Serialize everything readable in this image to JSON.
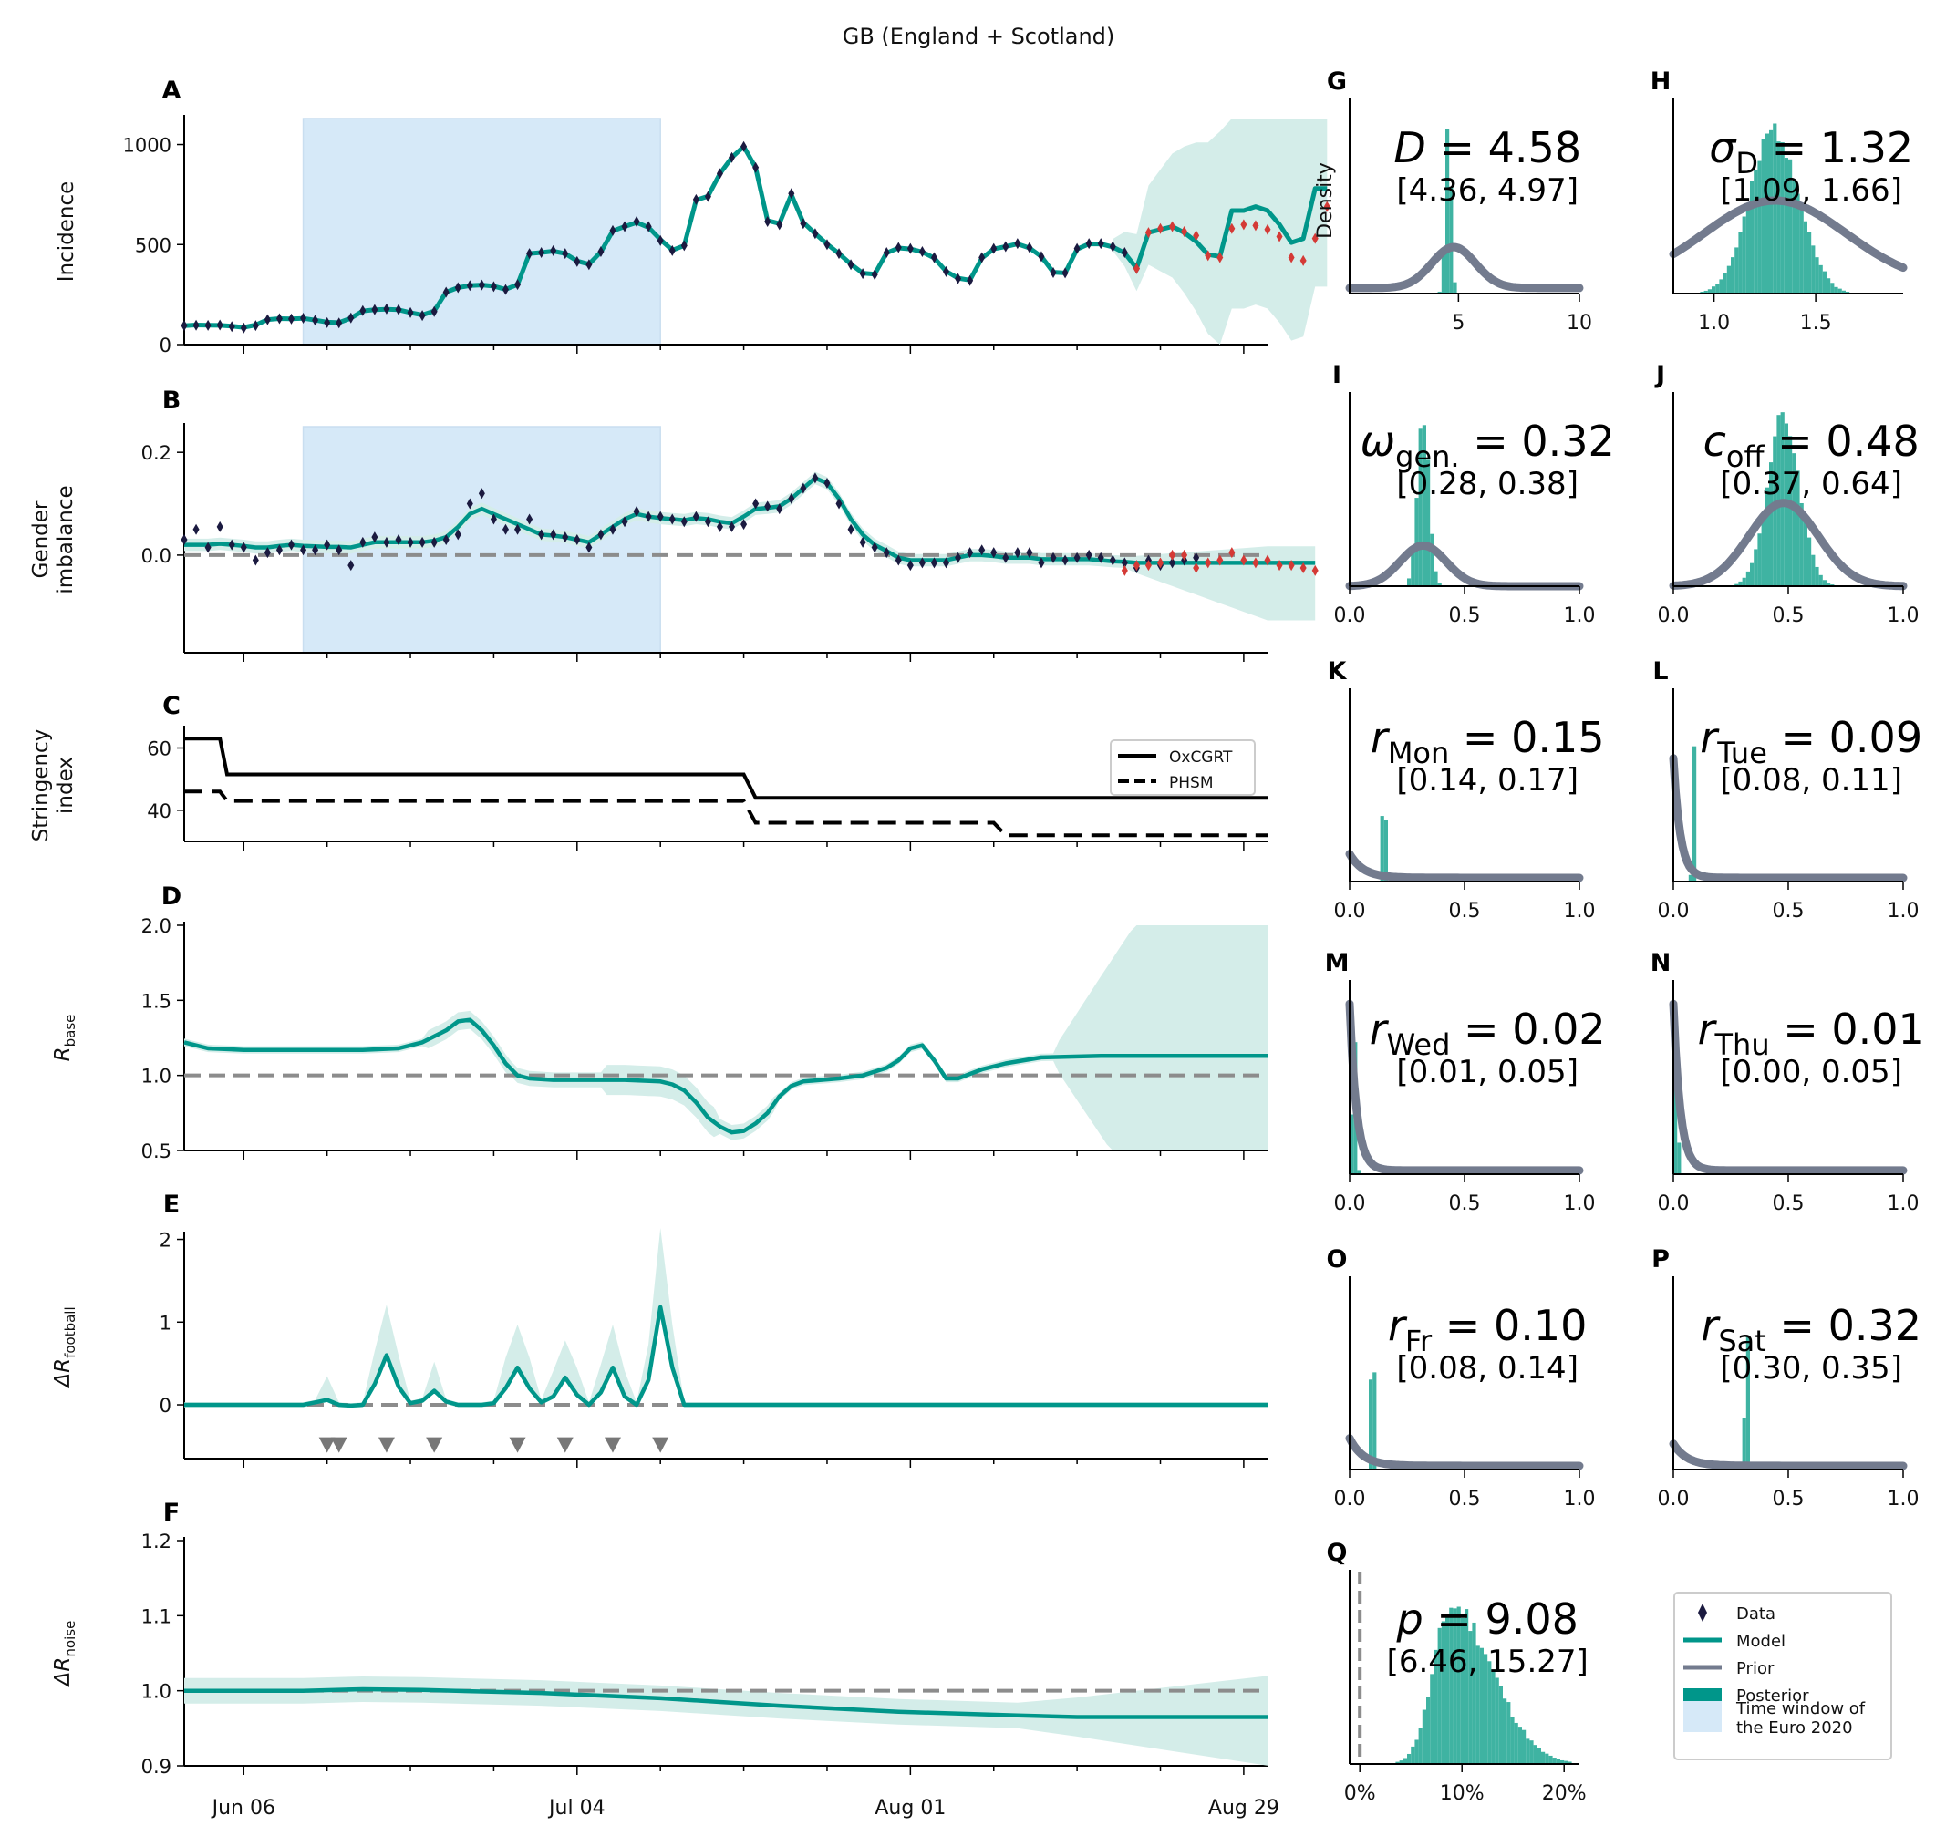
{
  "suptitle": "GB (England + Scotland)",
  "colors": {
    "model": "#00968a",
    "prior": "#737b8e",
    "posterior": "#3fb3a2",
    "band": "#d4ede9",
    "euro": "#d6e9f8",
    "data": "#1b1a40",
    "forecast": "#d43a36",
    "ref": "#8c8c8c"
  },
  "x_axis": {
    "ticks": [
      "Jun 06",
      "Jul 04",
      "Aug 01",
      "Aug 29"
    ],
    "tick_day": [
      5,
      33,
      61,
      89
    ],
    "range": [
      0,
      91
    ]
  },
  "euro_window": [
    10,
    40
  ],
  "panels": [
    {
      "letter": "A",
      "ylabel": "Incidence",
      "yticks": [
        "0",
        "500",
        "1000"
      ],
      "ytick_vals": [
        0,
        500,
        1000
      ],
      "ylim": [
        0,
        1130
      ]
    },
    {
      "letter": "B",
      "ylabel_1": "Gender",
      "ylabel_2": "imbalance",
      "yticks": [
        "0.0",
        "0.2"
      ],
      "ytick_vals": [
        0,
        0.2
      ],
      "ylim": [
        -0.19,
        0.25
      ]
    },
    {
      "letter": "C",
      "ylabel_1": "Stringency",
      "ylabel_2": "index",
      "yticks": [
        "40",
        "60"
      ],
      "ytick_vals": [
        40,
        60
      ],
      "ylim": [
        30,
        66
      ]
    },
    {
      "letter": "D",
      "ylabel": "R",
      "ylabel_sub": "base",
      "yticks": [
        "0.5",
        "1.0",
        "1.5",
        "2.0"
      ],
      "ytick_vals": [
        0.5,
        1,
        1.5,
        2
      ],
      "ylim": [
        0.5,
        2
      ]
    },
    {
      "letter": "E",
      "ylabel": "ΔR",
      "ylabel_sub": "football",
      "yticks": [
        "0",
        "1",
        "2"
      ],
      "ytick_vals": [
        0,
        1,
        2
      ],
      "ylim": [
        -0.65,
        2.05
      ]
    },
    {
      "letter": "F",
      "ylabel": "ΔR",
      "ylabel_sub": "noise",
      "yticks": [
        "0.9",
        "1.0",
        "1.1",
        "1.2"
      ],
      "ytick_vals": [
        0.9,
        1,
        1.1,
        1.2
      ],
      "ylim": [
        0.9,
        1.2
      ]
    }
  ],
  "stringency_legend": [
    "OxCGRT",
    "PHSM"
  ],
  "match_days": [
    12,
    13,
    17,
    21,
    28,
    32,
    36,
    40
  ],
  "chart_data": {
    "type": "line",
    "title": "GB (England + Scotland)",
    "incidence_data": [
      95,
      97,
      96,
      98,
      90,
      83,
      95,
      125,
      130,
      128,
      132,
      122,
      110,
      108,
      133,
      170,
      175,
      178,
      175,
      160,
      145,
      165,
      262,
      285,
      295,
      298,
      290,
      275,
      300,
      455,
      460,
      470,
      455,
      415,
      400,
      465,
      570,
      590,
      615,
      590,
      520,
      470,
      495,
      725,
      740,
      855,
      935,
      990,
      885,
      615,
      600,
      755,
      605,
      555,
      500,
      455,
      400,
      355,
      350,
      460,
      485,
      480,
      465,
      435,
      365,
      330,
      320,
      435,
      480,
      490,
      505,
      485,
      440,
      360,
      358,
      480,
      505,
      505,
      490,
      460,
      380
    ],
    "incidence_forecast": [
      380,
      560,
      580,
      590,
      565,
      545,
      445,
      435,
      580,
      600,
      595,
      575,
      540,
      435,
      420,
      530,
      690
    ],
    "incidence_model": [
      95,
      98,
      97,
      96,
      92,
      86,
      98,
      125,
      130,
      129,
      131,
      122,
      112,
      110,
      132,
      168,
      174,
      177,
      174,
      160,
      148,
      168,
      262,
      285,
      295,
      298,
      292,
      276,
      300,
      455,
      460,
      467,
      455,
      418,
      402,
      463,
      568,
      590,
      610,
      586,
      525,
      472,
      495,
      722,
      742,
      855,
      935,
      990,
      885,
      620,
      605,
      750,
      610,
      555,
      502,
      455,
      402,
      357,
      352,
      458,
      483,
      478,
      463,
      433,
      367,
      332,
      322,
      432,
      478,
      490,
      503,
      483,
      440,
      362,
      358,
      477,
      503,
      503,
      488,
      458,
      382,
      560,
      575,
      590,
      560,
      515,
      450,
      440,
      670,
      670,
      690,
      670,
      600,
      510,
      530,
      780,
      780
    ],
    "gender_data": [
      0.03,
      0.05,
      0.015,
      0.055,
      0.02,
      0.015,
      -0.01,
      0.005,
      0.01,
      0.02,
      0.01,
      0.01,
      0.02,
      0.01,
      -0.02,
      0.025,
      0.035,
      0.025,
      0.03,
      0.025,
      0.025,
      0.025,
      0.03,
      0.04,
      0.1,
      0.12,
      0.07,
      0.05,
      0.05,
      0.07,
      0.04,
      0.04,
      0.035,
      0.03,
      0.015,
      0.04,
      0.05,
      0.065,
      0.085,
      0.075,
      0.075,
      0.07,
      0.065,
      0.075,
      0.065,
      0.055,
      0.055,
      0.06,
      0.1,
      0.095,
      0.09,
      0.11,
      0.13,
      0.15,
      0.14,
      0.1,
      0.05,
      0.025,
      0.015,
      0.005,
      -0.01,
      -0.02,
      -0.015,
      -0.015,
      -0.015,
      -0.005,
      0.005,
      0.01,
      0.005,
      -0.005,
      0.005,
      0.005,
      -0.015,
      -0.005,
      -0.01,
      -0.005,
      0.0,
      -0.005,
      -0.01,
      -0.015,
      -0.025,
      -0.01,
      -0.02,
      -0.015,
      -0.01,
      -0.005
    ],
    "gender_forecast": [
      -0.03,
      -0.02,
      -0.02,
      -0.015,
      0.0,
      0.0,
      -0.025,
      -0.015,
      -0.01,
      0.005,
      -0.01,
      -0.015,
      -0.01,
      -0.02,
      -0.02,
      -0.025,
      -0.03
    ],
    "gender_model": [
      0.02,
      0.02,
      0.02,
      0.022,
      0.02,
      0.018,
      0.015,
      0.015,
      0.018,
      0.02,
      0.018,
      0.017,
      0.016,
      0.016,
      0.015,
      0.02,
      0.025,
      0.025,
      0.025,
      0.025,
      0.025,
      0.028,
      0.035,
      0.055,
      0.08,
      0.09,
      0.08,
      0.07,
      0.06,
      0.05,
      0.04,
      0.038,
      0.035,
      0.03,
      0.025,
      0.04,
      0.055,
      0.07,
      0.08,
      0.075,
      0.072,
      0.07,
      0.068,
      0.072,
      0.07,
      0.065,
      0.062,
      0.075,
      0.09,
      0.092,
      0.095,
      0.11,
      0.13,
      0.15,
      0.14,
      0.11,
      0.07,
      0.04,
      0.02,
      0.008,
      -0.005,
      -0.01,
      -0.01,
      -0.01,
      -0.01,
      -0.005,
      0.0,
      0.0,
      -0.002,
      -0.005,
      -0.005,
      -0.005,
      -0.008,
      -0.008,
      -0.008,
      -0.008,
      -0.008,
      -0.01,
      -0.012,
      -0.013,
      -0.015,
      -0.015,
      -0.015,
      -0.015,
      -0.015,
      -0.015,
      -0.015,
      -0.015,
      -0.015,
      -0.015,
      -0.015,
      -0.015,
      -0.015,
      -0.015,
      -0.015,
      -0.015
    ],
    "stringency_oxcgrt": [
      [
        0,
        63
      ],
      [
        3,
        63
      ],
      [
        3.6,
        51.5
      ],
      [
        47,
        51.5
      ],
      [
        48,
        44
      ],
      [
        91,
        44
      ]
    ],
    "stringency_phsm": [
      [
        0,
        46
      ],
      [
        3,
        46
      ],
      [
        3.6,
        43
      ],
      [
        47,
        43
      ],
      [
        48,
        36
      ],
      [
        68,
        36
      ],
      [
        69,
        32
      ],
      [
        91,
        32
      ]
    ],
    "r_base_mean": [
      [
        0,
        1.22
      ],
      [
        2,
        1.18
      ],
      [
        5,
        1.17
      ],
      [
        10,
        1.17
      ],
      [
        15,
        1.17
      ],
      [
        18,
        1.18
      ],
      [
        20,
        1.22
      ],
      [
        22,
        1.3
      ],
      [
        23,
        1.36
      ],
      [
        24,
        1.37
      ],
      [
        25,
        1.3
      ],
      [
        26,
        1.2
      ],
      [
        27,
        1.08
      ],
      [
        28,
        1.0
      ],
      [
        29,
        0.98
      ],
      [
        31,
        0.97
      ],
      [
        34,
        0.97
      ],
      [
        37,
        0.97
      ],
      [
        40,
        0.96
      ],
      [
        41,
        0.94
      ],
      [
        42,
        0.9
      ],
      [
        43,
        0.82
      ],
      [
        44,
        0.72
      ],
      [
        45,
        0.66
      ],
      [
        46,
        0.62
      ],
      [
        47,
        0.63
      ],
      [
        48,
        0.68
      ],
      [
        49,
        0.75
      ],
      [
        50,
        0.86
      ],
      [
        51,
        0.93
      ],
      [
        52,
        0.96
      ],
      [
        55,
        0.98
      ],
      [
        57,
        1.0
      ],
      [
        59,
        1.05
      ],
      [
        60,
        1.1
      ],
      [
        61,
        1.18
      ],
      [
        62,
        1.2
      ],
      [
        63,
        1.1
      ],
      [
        64,
        0.98
      ],
      [
        65,
        0.98
      ],
      [
        67,
        1.04
      ],
      [
        69,
        1.08
      ],
      [
        72,
        1.12
      ],
      [
        77,
        1.13
      ],
      [
        91,
        1.13
      ]
    ],
    "dr_football_mean": [
      [
        0,
        0
      ],
      [
        10,
        0
      ],
      [
        11,
        0.03
      ],
      [
        12,
        0.06
      ],
      [
        13,
        0.0
      ],
      [
        14,
        -0.01
      ],
      [
        15,
        0.0
      ],
      [
        16,
        0.25
      ],
      [
        17,
        0.6
      ],
      [
        18,
        0.22
      ],
      [
        19,
        0.02
      ],
      [
        20,
        0.05
      ],
      [
        21,
        0.17
      ],
      [
        22,
        0.04
      ],
      [
        23,
        0
      ],
      [
        25,
        0
      ],
      [
        26,
        0.02
      ],
      [
        27,
        0.2
      ],
      [
        28,
        0.45
      ],
      [
        29,
        0.2
      ],
      [
        30,
        0.03
      ],
      [
        31,
        0.1
      ],
      [
        32,
        0.33
      ],
      [
        33,
        0.12
      ],
      [
        34,
        0.0
      ],
      [
        35,
        0.15
      ],
      [
        36,
        0.45
      ],
      [
        37,
        0.1
      ],
      [
        38,
        0.0
      ],
      [
        39,
        0.3
      ],
      [
        40,
        1.18
      ],
      [
        41,
        0.45
      ],
      [
        42,
        0.0
      ],
      [
        43,
        0
      ],
      [
        91,
        0
      ]
    ],
    "dr_noise_mean": [
      [
        0,
        1.0
      ],
      [
        10,
        1.0
      ],
      [
        15,
        1.002
      ],
      [
        20,
        1.001
      ],
      [
        25,
        0.999
      ],
      [
        30,
        0.997
      ],
      [
        40,
        0.99
      ],
      [
        45,
        0.985
      ],
      [
        50,
        0.98
      ],
      [
        60,
        0.972
      ],
      [
        70,
        0.967
      ],
      [
        75,
        0.965
      ],
      [
        91,
        0.965
      ]
    ],
    "posteriors": [
      {
        "letter": "G",
        "label": "D = 4.58",
        "ci": "[4.36, 4.97]",
        "xticks": [
          "5",
          "10"
        ],
        "ylabel": "Density"
      },
      {
        "letter": "H",
        "label": "σD = 1.32",
        "ci": "[1.09, 1.66]",
        "xticks": [
          "1.0",
          "1.5"
        ]
      },
      {
        "letter": "I",
        "label": "ωgen. = 0.32",
        "ci": "[0.28, 0.38]",
        "xticks": [
          "0.0",
          "0.5",
          "1.0"
        ]
      },
      {
        "letter": "J",
        "label": "coff = 0.48",
        "ci": "[0.37, 0.64]",
        "xticks": [
          "0.0",
          "0.5",
          "1.0"
        ]
      },
      {
        "letter": "K",
        "label": "rMon = 0.15",
        "ci": "[0.14, 0.17]",
        "xticks": [
          "0.0",
          "0.5",
          "1.0"
        ]
      },
      {
        "letter": "L",
        "label": "rTue = 0.09",
        "ci": "[0.08, 0.11]",
        "xticks": [
          "0.0",
          "0.5",
          "1.0"
        ]
      },
      {
        "letter": "M",
        "label": "rWed = 0.02",
        "ci": "[0.01, 0.05]",
        "xticks": [
          "0.0",
          "0.5",
          "1.0"
        ]
      },
      {
        "letter": "N",
        "label": "rThu = 0.01",
        "ci": "[0.00, 0.05]",
        "xticks": [
          "0.0",
          "0.5",
          "1.0"
        ]
      },
      {
        "letter": "O",
        "label": "rFr = 0.10",
        "ci": "[0.08, 0.14]",
        "xticks": [
          "0.0",
          "0.5",
          "1.0"
        ]
      },
      {
        "letter": "P",
        "label": "rSat = 0.32",
        "ci": "[0.30, 0.35]",
        "xticks": [
          "0.0",
          "0.5",
          "1.0"
        ]
      },
      {
        "letter": "Q",
        "label": "p = 9.08",
        "ci": "[6.46, 15.27]",
        "xticks": [
          "0%",
          "10%",
          "20%"
        ]
      }
    ]
  },
  "posterior_symbols": [
    {
      "main": "D",
      "sub": "",
      "value": " = 4.58"
    },
    {
      "main": "σ",
      "sub": "D",
      "value": " = 1.32"
    },
    {
      "main": "ω",
      "sub": "gen.",
      "value": " = 0.32"
    },
    {
      "main": "c",
      "sub": "off",
      "value": " = 0.48"
    },
    {
      "main": "r",
      "sub": "Mon",
      "value": " = 0.15"
    },
    {
      "main": "r",
      "sub": "Tue",
      "value": " = 0.09"
    },
    {
      "main": "r",
      "sub": "Wed",
      "value": " = 0.02"
    },
    {
      "main": "r",
      "sub": "Thu",
      "value": " = 0.01"
    },
    {
      "main": "r",
      "sub": "Fr",
      "value": " = 0.10"
    },
    {
      "main": "r",
      "sub": "Sat",
      "value": " = 0.32"
    },
    {
      "main": "p",
      "sub": "",
      "value": " = 9.08"
    }
  ],
  "legend": {
    "data": "Data",
    "model": "Model",
    "prior": "Prior",
    "posterior": "Posterior",
    "euro_1": "Time window of",
    "euro_2": "the Euro 2020"
  }
}
